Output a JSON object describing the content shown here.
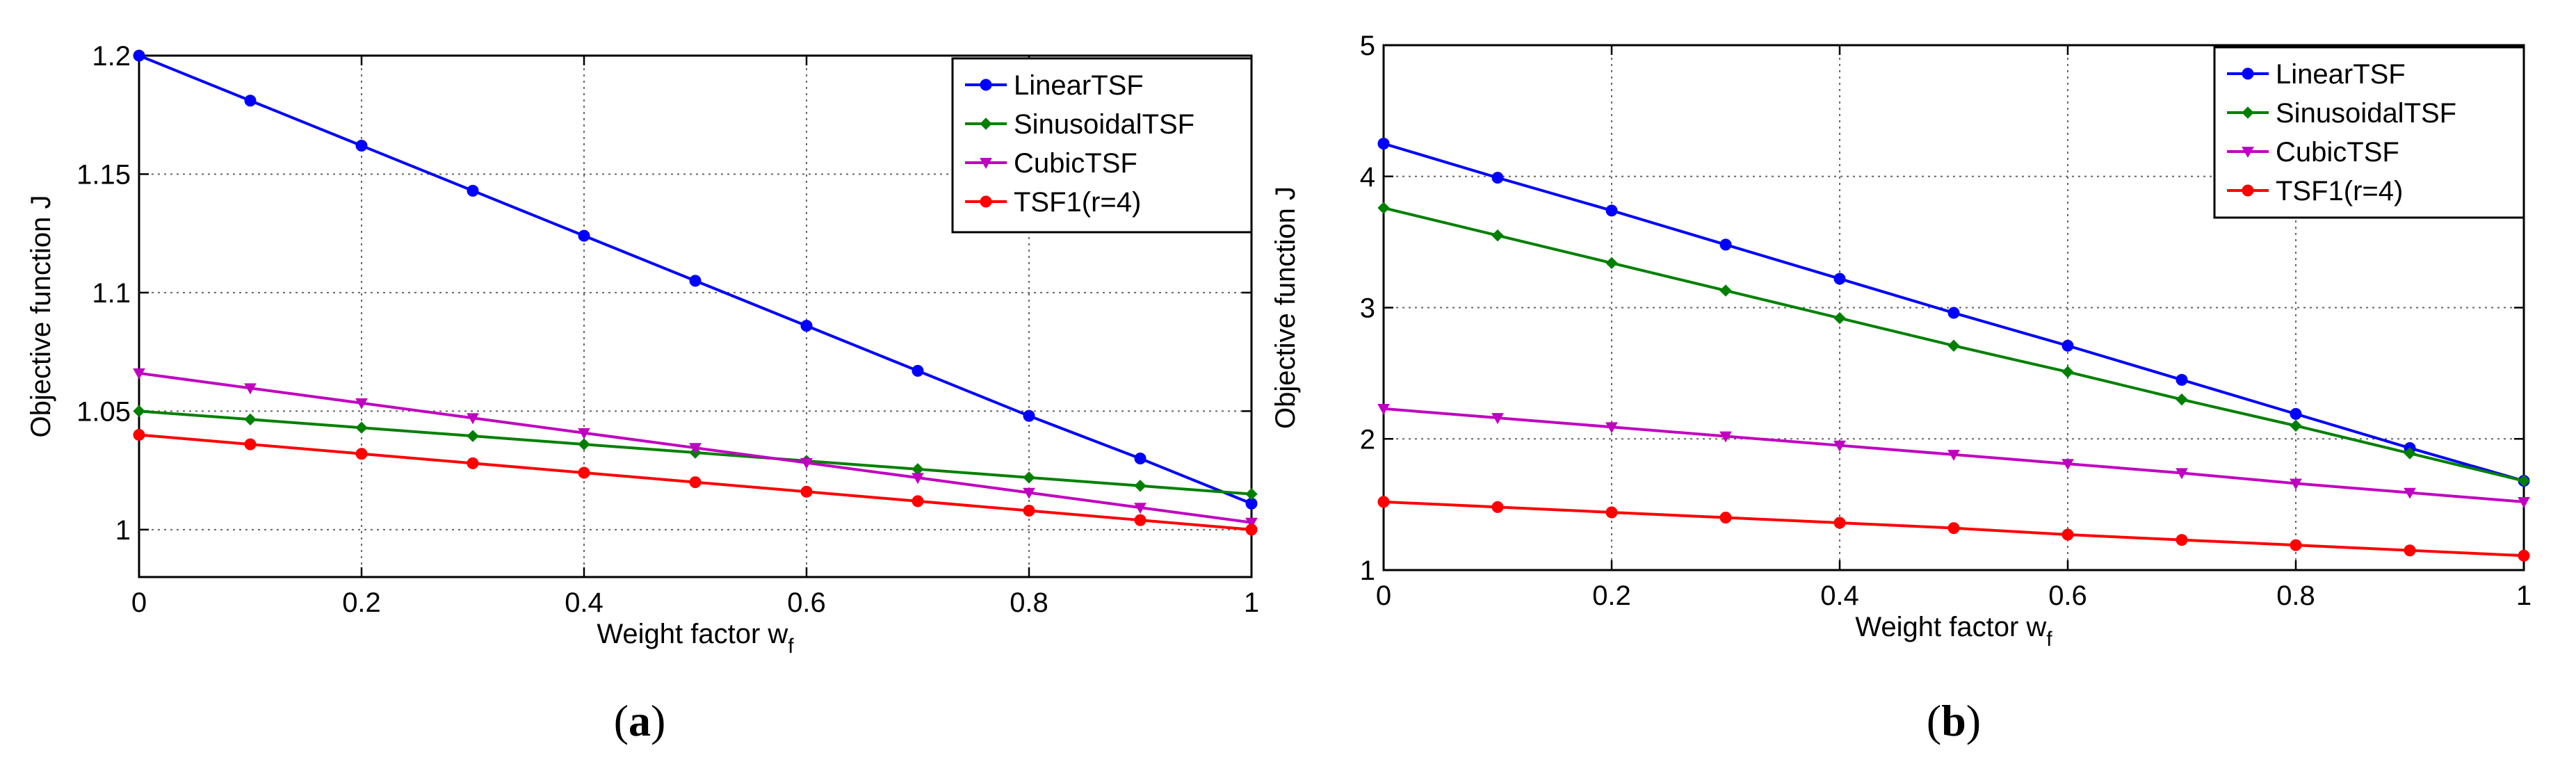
{
  "chart_data": [
    {
      "type": "line",
      "panel_label": "a",
      "xlabel": "Weight factor w",
      "xlabel_sub": "f",
      "ylabel": "Objective function J",
      "xlim": [
        0,
        1
      ],
      "ylim": [
        0.98,
        1.2
      ],
      "xticks": [
        "0",
        "0.2",
        "0.4",
        "0.6",
        "0.8",
        "1"
      ],
      "xtick_values": [
        0,
        0.2,
        0.4,
        0.6,
        0.8,
        1
      ],
      "yticks": [
        "1",
        "1.05",
        "1.1",
        "1.15",
        "1.2"
      ],
      "ytick_values": [
        1,
        1.05,
        1.1,
        1.15,
        1.2
      ],
      "grid": true,
      "legend_position": "top-right",
      "x": [
        0,
        0.1,
        0.2,
        0.3,
        0.4,
        0.5,
        0.6,
        0.7,
        0.8,
        0.9,
        1
      ],
      "series": [
        {
          "name": "LinearTSF",
          "color": "#0000ff",
          "marker": "circle",
          "values": [
            1.2,
            1.181,
            1.162,
            1.143,
            1.124,
            1.105,
            1.086,
            1.067,
            1.048,
            1.03,
            1.011
          ]
        },
        {
          "name": "SinusoidalTSF",
          "color": "#008000",
          "marker": "diamond",
          "values": [
            1.05,
            1.0465,
            1.043,
            1.0395,
            1.036,
            1.0325,
            1.029,
            1.0255,
            1.022,
            1.0185,
            1.015
          ]
        },
        {
          "name": "CubicTSF",
          "color": "#c000c0",
          "marker": "triangle-down",
          "values": [
            1.066,
            1.0597,
            1.0534,
            1.0471,
            1.0408,
            1.0345,
            1.0282,
            1.0219,
            1.0156,
            1.0093,
            1.003
          ]
        },
        {
          "name": "TSF1(r=4)",
          "color": "#ff0000",
          "marker": "circle",
          "values": [
            1.04,
            1.036,
            1.032,
            1.028,
            1.024,
            1.02,
            1.016,
            1.012,
            1.008,
            1.004,
            1.0
          ]
        }
      ]
    },
    {
      "type": "line",
      "panel_label": "b",
      "xlabel": "Weight factor w",
      "xlabel_sub": "f",
      "ylabel": "Objective function J",
      "xlim": [
        0,
        1
      ],
      "ylim": [
        1,
        5
      ],
      "xticks": [
        "0",
        "0.2",
        "0.4",
        "0.6",
        "0.8",
        "1"
      ],
      "xtick_values": [
        0,
        0.2,
        0.4,
        0.6,
        0.8,
        1
      ],
      "yticks": [
        "1",
        "2",
        "3",
        "4",
        "5"
      ],
      "ytick_values": [
        1,
        2,
        3,
        4,
        5
      ],
      "grid": true,
      "legend_position": "top-right",
      "x": [
        0,
        0.1,
        0.2,
        0.3,
        0.4,
        0.5,
        0.6,
        0.7,
        0.8,
        0.9,
        1
      ],
      "series": [
        {
          "name": "LinearTSF",
          "color": "#0000ff",
          "marker": "circle",
          "values": [
            4.25,
            3.99,
            3.74,
            3.48,
            3.22,
            2.96,
            2.71,
            2.45,
            2.19,
            1.93,
            1.68
          ]
        },
        {
          "name": "SinusoidalTSF",
          "color": "#008000",
          "marker": "diamond",
          "values": [
            3.76,
            3.55,
            3.34,
            3.13,
            2.92,
            2.71,
            2.51,
            2.3,
            2.1,
            1.89,
            1.68
          ]
        },
        {
          "name": "CubicTSF",
          "color": "#c000c0",
          "marker": "triangle-down",
          "values": [
            2.23,
            2.16,
            2.09,
            2.02,
            1.95,
            1.88,
            1.81,
            1.74,
            1.66,
            1.59,
            1.52
          ]
        },
        {
          "name": "TSF1(r=4)",
          "color": "#ff0000",
          "marker": "circle",
          "values": [
            1.52,
            1.48,
            1.44,
            1.4,
            1.36,
            1.32,
            1.27,
            1.23,
            1.19,
            1.15,
            1.11
          ]
        }
      ]
    }
  ]
}
